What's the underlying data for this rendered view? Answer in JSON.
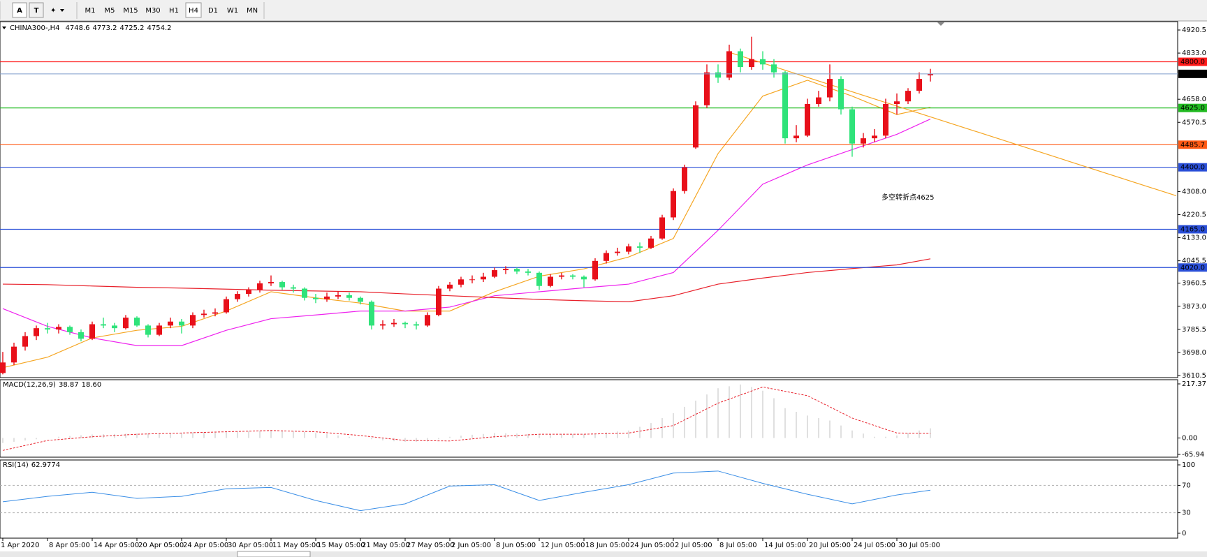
{
  "toolbar": {
    "tools": [
      "A",
      "T"
    ],
    "timeframes": [
      "M1",
      "M5",
      "M15",
      "M30",
      "H1",
      "H4",
      "D1",
      "W1",
      "MN"
    ],
    "active": "H4"
  },
  "chart_data": {
    "type": "candlestick",
    "symbol": "CHINA300-,H4",
    "annotation": "多空转折点4625",
    "up_color": "#e8101a",
    "down_color": "#2fe37a",
    "candles": [
      [
        3620,
        3700,
        3615,
        3660
      ],
      [
        3660,
        3735,
        3650,
        3720
      ],
      [
        3720,
        3775,
        3705,
        3760
      ],
      [
        3760,
        3800,
        3745,
        3790
      ],
      [
        3790,
        3810,
        3770,
        3785
      ],
      [
        3785,
        3805,
        3770,
        3795
      ],
      [
        3795,
        3800,
        3765,
        3775
      ],
      [
        3775,
        3785,
        3740,
        3750
      ],
      [
        3750,
        3815,
        3745,
        3805
      ],
      [
        3805,
        3830,
        3790,
        3800
      ],
      [
        3800,
        3810,
        3775,
        3790
      ],
      [
        3790,
        3840,
        3785,
        3830
      ],
      [
        3830,
        3835,
        3795,
        3800
      ],
      [
        3800,
        3805,
        3755,
        3765
      ],
      [
        3765,
        3810,
        3760,
        3800
      ],
      [
        3800,
        3830,
        3790,
        3815
      ],
      [
        3815,
        3825,
        3770,
        3800
      ],
      [
        3800,
        3850,
        3790,
        3840
      ],
      [
        3840,
        3860,
        3830,
        3845
      ],
      [
        3845,
        3865,
        3835,
        3850
      ],
      [
        3850,
        3910,
        3845,
        3900
      ],
      [
        3900,
        3930,
        3890,
        3920
      ],
      [
        3920,
        3945,
        3910,
        3935
      ],
      [
        3935,
        3970,
        3925,
        3960
      ],
      [
        3960,
        3990,
        3950,
        3965
      ],
      [
        3965,
        3970,
        3935,
        3945
      ],
      [
        3945,
        3955,
        3925,
        3940
      ],
      [
        3940,
        3945,
        3895,
        3905
      ],
      [
        3905,
        3920,
        3885,
        3900
      ],
      [
        3900,
        3925,
        3890,
        3910
      ],
      [
        3910,
        3930,
        3900,
        3915
      ],
      [
        3915,
        3925,
        3895,
        3905
      ],
      [
        3905,
        3910,
        3880,
        3890
      ],
      [
        3890,
        3895,
        3785,
        3800
      ],
      [
        3800,
        3820,
        3785,
        3805
      ],
      [
        3805,
        3825,
        3795,
        3810
      ],
      [
        3810,
        3815,
        3790,
        3805
      ],
      [
        3805,
        3815,
        3785,
        3800
      ],
      [
        3800,
        3850,
        3795,
        3840
      ],
      [
        3840,
        3950,
        3835,
        3940
      ],
      [
        3940,
        3965,
        3930,
        3955
      ],
      [
        3955,
        3985,
        3945,
        3975
      ],
      [
        3975,
        3990,
        3960,
        3975
      ],
      [
        3975,
        4000,
        3965,
        3985
      ],
      [
        3985,
        4020,
        3980,
        4010
      ],
      [
        4010,
        4025,
        3995,
        4015
      ],
      [
        4015,
        4020,
        3995,
        4005
      ],
      [
        4005,
        4015,
        3990,
        4000
      ],
      [
        4000,
        4005,
        3935,
        3950
      ],
      [
        3950,
        3995,
        3945,
        3985
      ],
      [
        3985,
        4000,
        3975,
        3990
      ],
      [
        3990,
        3995,
        3975,
        3985
      ],
      [
        3985,
        3990,
        3945,
        3975
      ],
      [
        3975,
        4055,
        3970,
        4045
      ],
      [
        4045,
        4085,
        4035,
        4075
      ],
      [
        4075,
        4095,
        4065,
        4080
      ],
      [
        4080,
        4110,
        4070,
        4100
      ],
      [
        4100,
        4115,
        4075,
        4095
      ],
      [
        4095,
        4140,
        4090,
        4130
      ],
      [
        4130,
        4220,
        4125,
        4210
      ],
      [
        4210,
        4320,
        4200,
        4310
      ],
      [
        4310,
        4410,
        4300,
        4400
      ],
      [
        4475,
        4650,
        4470,
        4635
      ],
      [
        4635,
        4790,
        4625,
        4760
      ],
      [
        4760,
        4790,
        4720,
        4740
      ],
      [
        4740,
        4865,
        4730,
        4840
      ],
      [
        4840,
        4850,
        4760,
        4780
      ],
      [
        4780,
        4895,
        4770,
        4810
      ],
      [
        4810,
        4840,
        4770,
        4790
      ],
      [
        4790,
        4810,
        4740,
        4760
      ],
      [
        4760,
        4765,
        4490,
        4510
      ],
      [
        4510,
        4560,
        4495,
        4520
      ],
      [
        4520,
        4660,
        4515,
        4640
      ],
      [
        4640,
        4690,
        4630,
        4665
      ],
      [
        4665,
        4790,
        4650,
        4735
      ],
      [
        4735,
        4745,
        4600,
        4620
      ],
      [
        4620,
        4630,
        4440,
        4490
      ],
      [
        4490,
        4530,
        4475,
        4510
      ],
      [
        4510,
        4545,
        4495,
        4520
      ],
      [
        4520,
        4660,
        4510,
        4640
      ],
      [
        4640,
        4680,
        4600,
        4650
      ],
      [
        4650,
        4700,
        4640,
        4690
      ],
      [
        4690,
        4760,
        4680,
        4735
      ],
      [
        4748.6,
        4773.2,
        4725.2,
        4754.2
      ]
    ],
    "ylim": [
      3610.5,
      4920.5
    ],
    "yticks": [
      4920.5,
      {
        "value": 4833,
        "label": "4833.0"
      },
      {
        "value": 4658,
        "label": "4658.0"
      },
      4570.5,
      {
        "value": 4308,
        "label": "4308.0"
      },
      4220.5,
      {
        "value": 4133,
        "label": "4133.0"
      },
      4045.5,
      3960.5,
      {
        "value": 3873,
        "label": "3873.0"
      },
      3785.5,
      {
        "value": 3698,
        "label": "3698.0"
      },
      3610.5
    ],
    "time_labels": [
      "1 Apr 2020",
      "8 Apr 05:00",
      "14 Apr 05:00",
      "20 Apr 05:00",
      "24 Apr 05:00",
      "30 Apr 05:00",
      "11 May 05:00",
      "15 May 05:00",
      "21 May 05:00",
      "27 May 05:00",
      "2 Jun 05:00",
      "8 Jun 05:00",
      "12 Jun 05:00",
      "18 Jun 05:00",
      "24 Jun 05:00",
      "2 Jul 05:00",
      "8 Jul 05:00",
      "14 Jul 05:00",
      "20 Jul 05:00",
      "24 Jul 05:00",
      "30 Jul 05:00"
    ],
    "levels": [
      {
        "value": 4800,
        "label": "4800.0",
        "color": "#ff1a1a"
      },
      {
        "value": 4625,
        "label": "4625.0",
        "color": "#22bb22"
      },
      {
        "value": 4485.7,
        "label": "4485.7",
        "color": "#ff5a14"
      },
      {
        "value": 4400,
        "label": "4400.0",
        "color": "#2a4fd8"
      },
      {
        "value": 4165,
        "label": "4165.0",
        "color": "#2a4fd8"
      },
      {
        "value": 4020,
        "label": "4020.0",
        "color": "#2a4fd8"
      }
    ],
    "current_price_color": "#7f9ccc",
    "overlay_x": [
      0,
      4,
      8,
      12,
      16,
      20,
      24,
      28,
      32,
      36,
      40,
      44,
      48,
      52,
      56,
      60,
      64,
      68,
      72,
      76,
      80,
      83
    ],
    "moving_averages": [
      {
        "color": "#f5a623",
        "values": [
          3640,
          3680,
          3753,
          3782,
          3797,
          3855,
          3928,
          3905,
          3885,
          3855,
          3855,
          3928,
          3987,
          4015,
          4060,
          4130,
          4452,
          4670,
          4730,
          4670,
          4600,
          4628
        ]
      },
      {
        "color": "#ee22ee",
        "values": [
          3864,
          3797,
          3753,
          3724,
          3724,
          3782,
          3826,
          3840,
          3855,
          3855,
          3870,
          3913,
          3928,
          3943,
          3957,
          4001,
          4161,
          4336,
          4409,
          4467,
          4525,
          4583
        ]
      },
      {
        "color": "#e8202a",
        "values": [
          3957,
          3955,
          3950,
          3945,
          3942,
          3938,
          3934,
          3931,
          3928,
          3920,
          3913,
          3906,
          3899,
          3894,
          3890,
          3913,
          3957,
          3980,
          4001,
          4016,
          4030,
          4053
        ]
      }
    ],
    "trendline": {
      "color": "#f5a623",
      "x": [
        65,
        105
      ],
      "values": [
        4836,
        4292
      ]
    },
    "macd": {
      "title": "MACD(12,26,9)",
      "ylim": [
        -65.94,
        217.37
      ],
      "yticks": [
        217.37,
        {
          "value": 0,
          "label": "0.00"
        },
        -65.94
      ],
      "histogram": {
        "color": "#c0c0c0",
        "values": [
          -20,
          -15,
          -10,
          -5,
          0,
          5,
          8,
          11,
          14,
          15,
          16,
          17,
          18,
          19,
          20,
          20,
          21,
          22,
          23,
          24,
          25,
          26,
          28,
          29,
          30,
          29,
          27,
          24,
          20,
          15,
          10,
          5,
          0,
          -5,
          -10,
          -13,
          -15,
          -15,
          -14,
          -5,
          5,
          9,
          13,
          16,
          20,
          19,
          18,
          16,
          15,
          15,
          15,
          15,
          15,
          18,
          22,
          26,
          30,
          45,
          60,
          80,
          100,
          125,
          150,
          175,
          200,
          208,
          215,
          205,
          190,
          160,
          120,
          105,
          90,
          80,
          70,
          50,
          30,
          18,
          5,
          5,
          10,
          20,
          30,
          38.87
        ]
      },
      "signal": {
        "color": "#e8202a",
        "values": [
          -50,
          -10,
          5,
          15,
          20,
          25,
          30,
          25,
          10,
          -10,
          -12,
          5,
          15,
          15,
          20,
          50,
          140,
          205,
          170,
          80,
          20,
          18.6
        ],
        "value_labels": [
          null,
          null,
          null,
          null,
          null,
          null,
          null,
          null,
          null,
          null,
          null,
          null,
          null,
          null,
          null,
          null,
          null,
          null,
          null,
          null,
          null,
          "18.60"
        ]
      }
    },
    "rsi": {
      "title": "RSI(14)",
      "ylim": [
        0,
        100
      ],
      "yticks": [
        100,
        70,
        30,
        0
      ],
      "color": "#3a8ee6",
      "values": [
        46,
        54,
        60,
        51,
        54,
        65,
        67,
        48,
        33,
        43,
        69,
        71,
        48,
        60,
        71,
        88,
        91,
        73,
        57,
        43,
        56,
        62.9774
      ]
    }
  }
}
